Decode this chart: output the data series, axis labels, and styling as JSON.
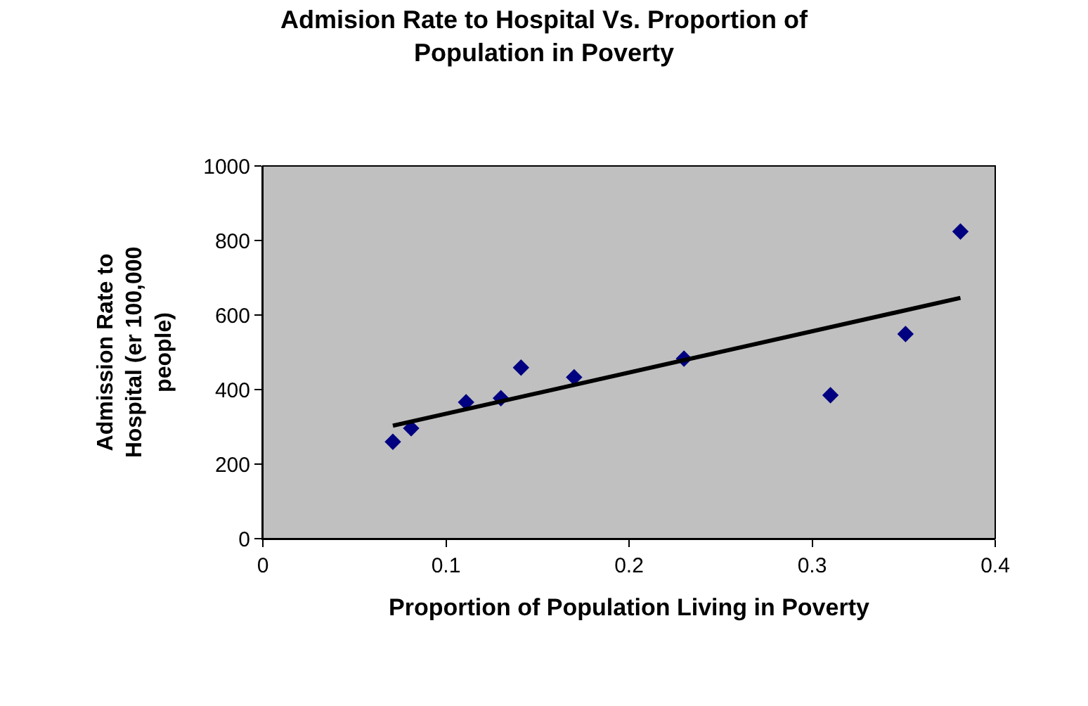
{
  "chart_data": {
    "type": "scatter",
    "title": "Admision Rate to Hospital Vs. Proportion of Population in Poverty",
    "xlabel": "Proportion of Population Living in Poverty",
    "ylabel": "Admission Rate to Hospital (er 100,000 people)",
    "series": [
      {
        "color": "#000080",
        "marker": "diamond",
        "x": [
          0.071,
          0.081,
          0.111,
          0.13,
          0.141,
          0.17,
          0.23,
          0.31,
          0.351,
          0.381
        ],
        "values": [
          260,
          296,
          366,
          377,
          459,
          433,
          483,
          385,
          549,
          824
        ]
      },
      {
        "type": "line",
        "color": "#000000",
        "line_style": "solid",
        "x": [
          0.071,
          0.381
        ],
        "values": [
          303,
          646
        ]
      }
    ],
    "xlim": [
      0,
      0.4
    ],
    "xticks": [
      0,
      0.1,
      0.2,
      0.3,
      0.4
    ],
    "ylim": [
      0,
      1000
    ],
    "yticks": [
      0,
      200,
      400,
      600,
      800,
      1000
    ],
    "grid": false
  }
}
